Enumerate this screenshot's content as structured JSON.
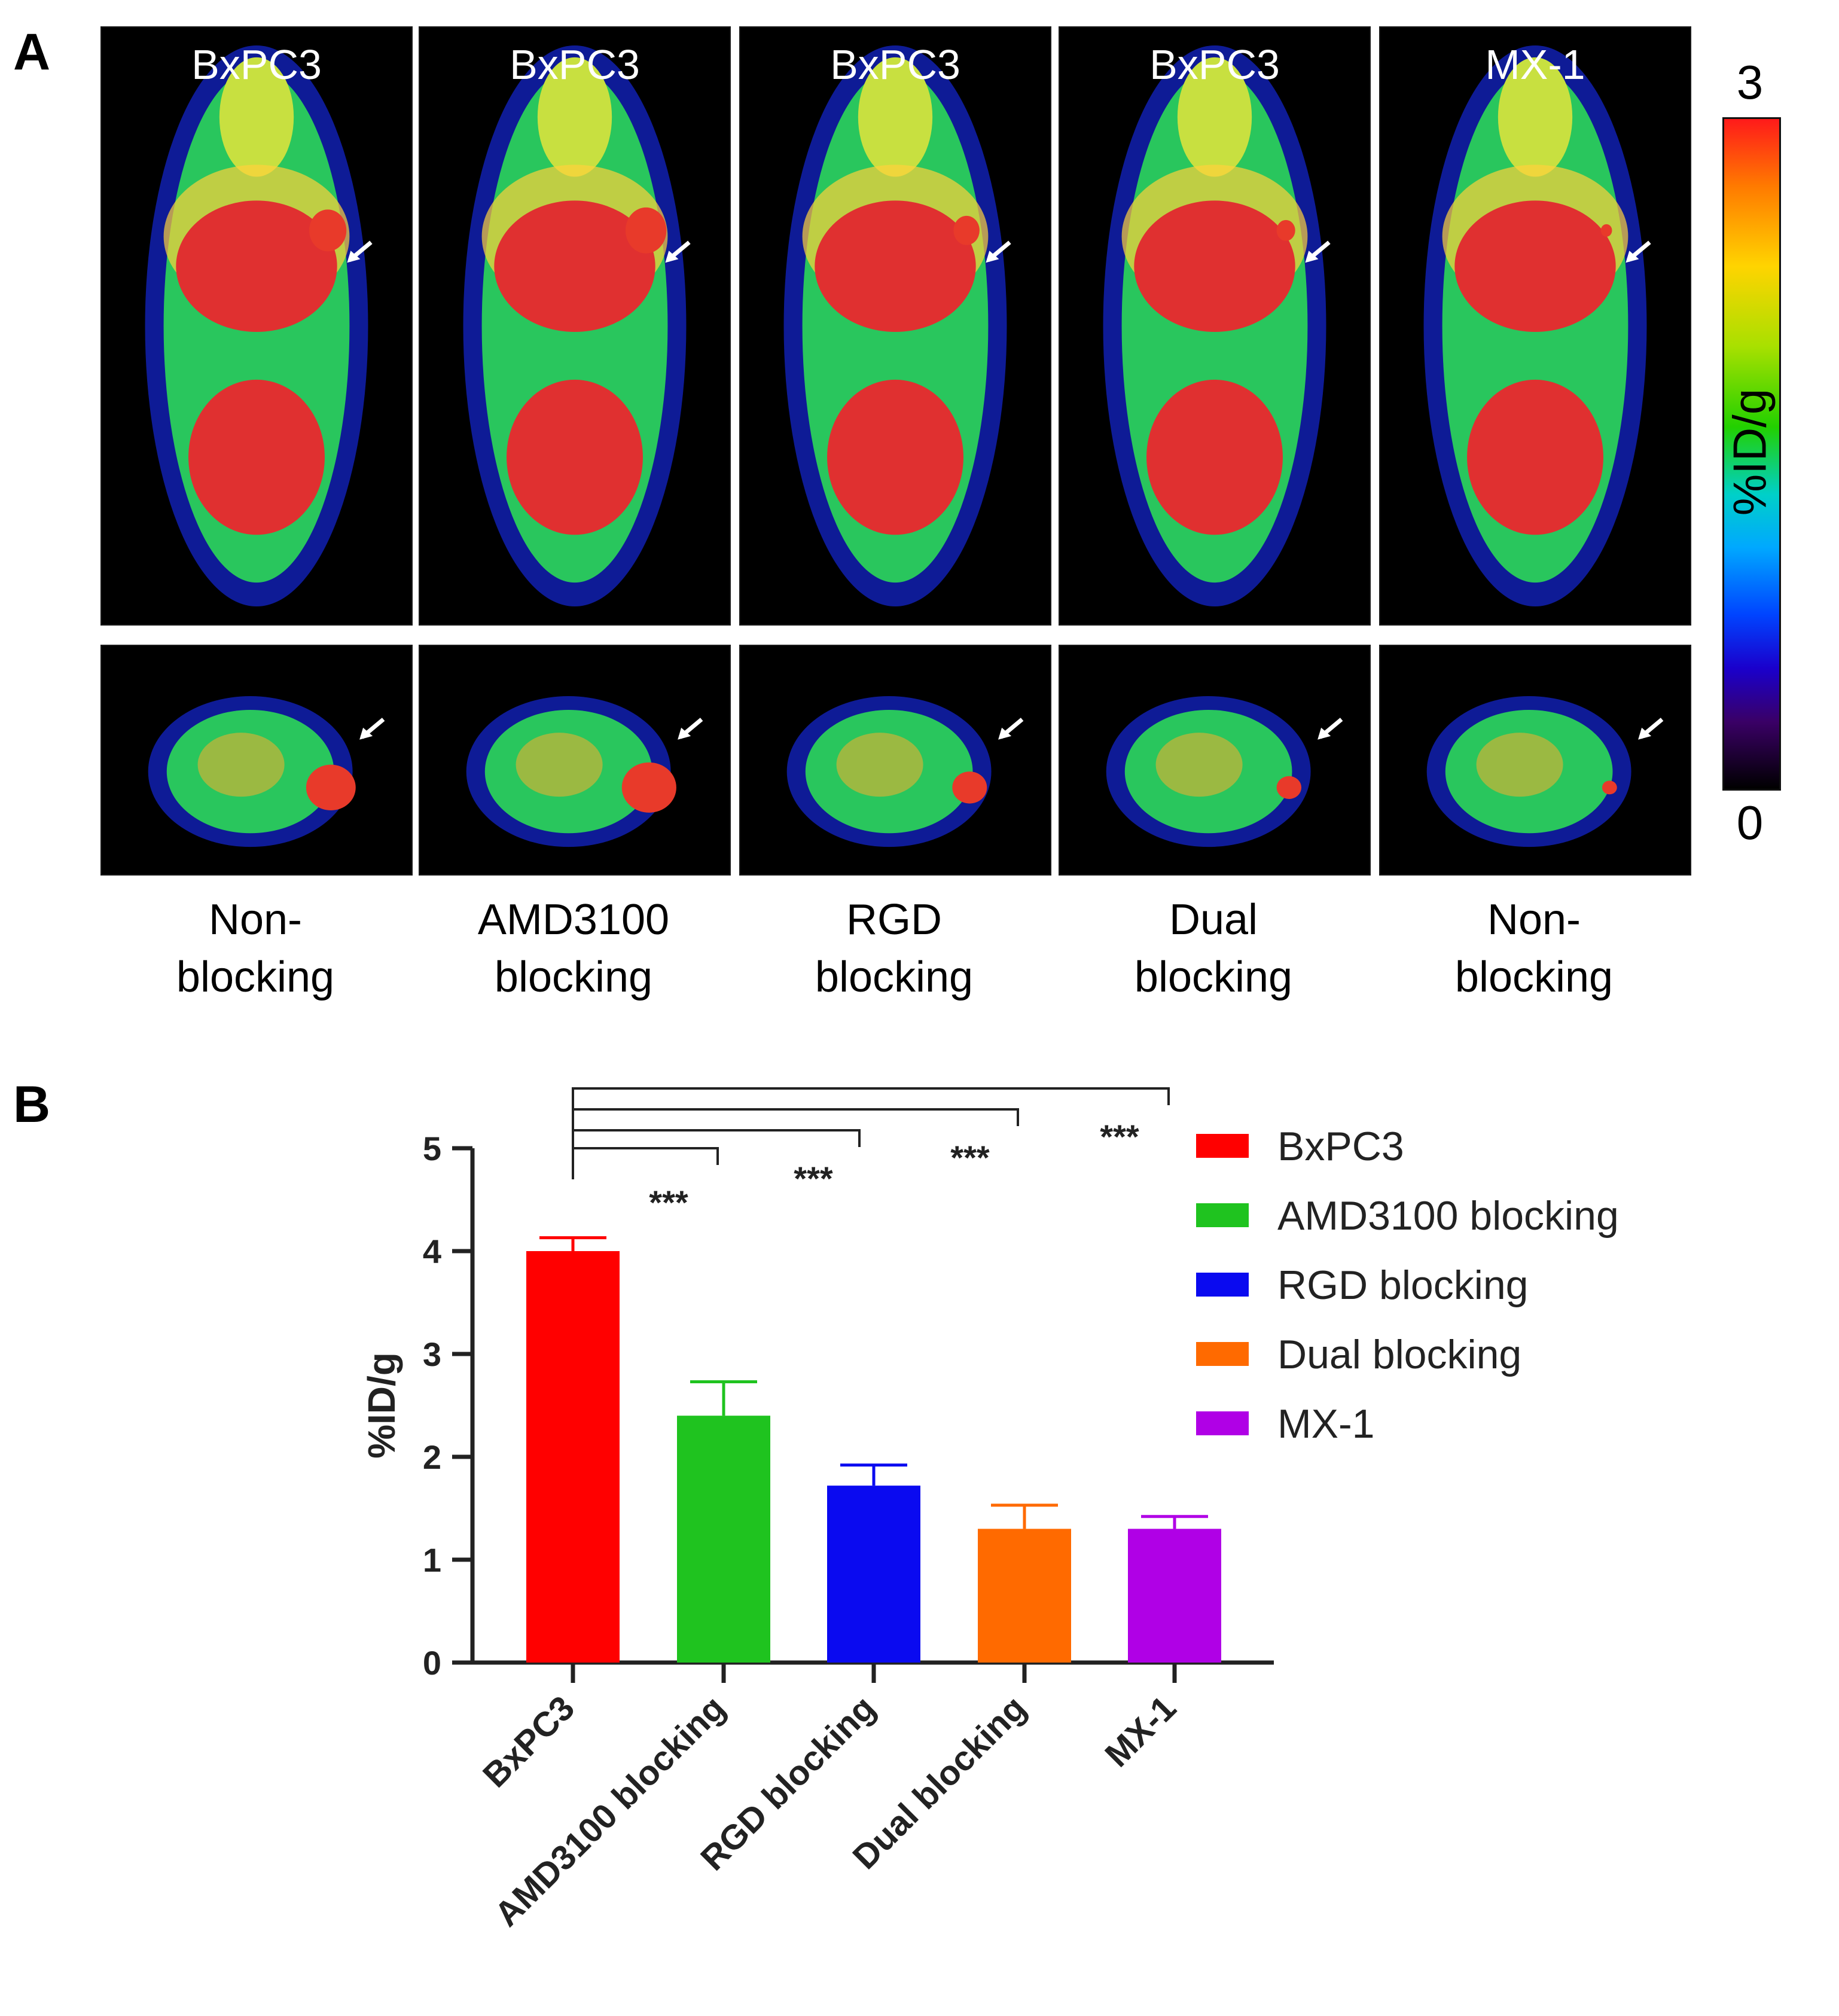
{
  "panel_a": {
    "letter": "A",
    "colorbar": {
      "label": "%ID/g",
      "max_label": "3",
      "min_label": "0"
    },
    "columns": [
      {
        "cell_line": "BxPC3",
        "condition_line1": "Non-",
        "condition_line2": "blocking"
      },
      {
        "cell_line": "BxPC3",
        "condition_line1": "AMD3100",
        "condition_line2": "blocking"
      },
      {
        "cell_line": "BxPC3",
        "condition_line1": "RGD",
        "condition_line2": "blocking"
      },
      {
        "cell_line": "BxPC3",
        "condition_line1": "Dual",
        "condition_line2": "blocking"
      },
      {
        "cell_line": "MX-1",
        "condition_line1": "Non-",
        "condition_line2": "blocking"
      }
    ]
  },
  "panel_b": {
    "letter": "B"
  },
  "chart_data": {
    "type": "bar",
    "title": "",
    "xlabel": "",
    "ylabel": "%ID/g",
    "ylim": [
      0,
      5
    ],
    "yticks": [
      "0",
      "1",
      "2",
      "3",
      "4",
      "5"
    ],
    "categories": [
      "BxPC3",
      "AMD3100 blocking",
      "RGD blocking",
      "Dual blocking",
      "MX-1"
    ],
    "values": [
      4.0,
      2.4,
      1.72,
      1.3,
      1.3
    ],
    "errors": [
      0.13,
      0.33,
      0.2,
      0.23,
      0.12
    ],
    "colors": [
      "#ff0000",
      "#1fc31f",
      "#0a0af0",
      "#ff6a00",
      "#b000e6"
    ],
    "legend": [
      "BxPC3",
      "AMD3100 blocking",
      "RGD blocking",
      "Dual blocking",
      "MX-1"
    ],
    "legend_position": "top-right",
    "significance": [
      {
        "from": 0,
        "to": 1,
        "label": "***"
      },
      {
        "from": 0,
        "to": 2,
        "label": "***"
      },
      {
        "from": 0,
        "to": 3,
        "label": "***"
      },
      {
        "from": 0,
        "to": 4,
        "label": "***"
      }
    ]
  }
}
